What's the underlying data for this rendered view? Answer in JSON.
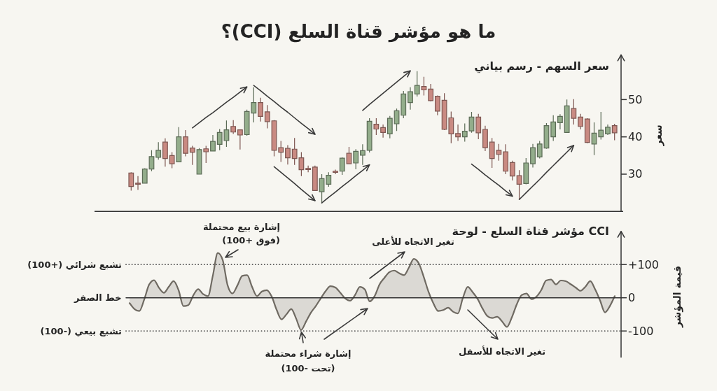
{
  "chart_data": [
    {
      "type": "candlestick",
      "title": "ما هو مؤشر قناة السلع (CCI)؟",
      "subtitle": "سعر السهم - رسم بياني",
      "ylabel": "سعر",
      "tick_labels": "y",
      "ylim": [
        20,
        62
      ],
      "yticks": [
        30,
        40,
        50
      ],
      "categories": [
        null,
        null,
        null,
        null,
        null,
        null,
        null,
        null,
        null,
        null,
        null,
        null,
        null,
        null,
        null,
        null,
        null,
        null,
        null,
        null,
        null,
        null,
        null,
        null,
        null,
        null,
        null,
        null,
        null,
        null,
        null,
        null,
        null,
        null,
        null,
        null,
        null,
        null,
        null,
        null,
        null,
        null,
        null,
        null,
        null,
        null,
        null,
        null,
        null,
        null,
        null,
        null,
        null,
        null,
        null,
        null,
        null,
        null,
        null,
        null,
        null,
        null,
        null,
        null,
        null,
        null,
        null,
        null,
        null,
        null,
        null,
        null
      ],
      "ohlc": [
        [
          30.3,
          30.5,
          25.6,
          26.7
        ],
        [
          27.6,
          29.5,
          25.8,
          27.3
        ],
        [
          27.6,
          31.6,
          27.5,
          31.4
        ],
        [
          31.4,
          36.4,
          30.8,
          34.7
        ],
        [
          34.5,
          38.6,
          33.9,
          36.4
        ],
        [
          38.6,
          39.6,
          32.0,
          34.2
        ],
        [
          35.0,
          35.9,
          31.6,
          32.8
        ],
        [
          33.3,
          42.6,
          33.3,
          40.0
        ],
        [
          40.0,
          41.8,
          34.8,
          35.6
        ],
        [
          37.0,
          37.6,
          32.5,
          35.9
        ],
        [
          30.0,
          37.0,
          30.0,
          36.6
        ],
        [
          36.8,
          37.6,
          33.0,
          36.0
        ],
        [
          36.2,
          40.5,
          36.2,
          38.8
        ],
        [
          38.0,
          42.1,
          36.4,
          41.2
        ],
        [
          39.0,
          44.4,
          37.3,
          41.9
        ],
        [
          42.8,
          44.5,
          40.8,
          41.3
        ],
        [
          41.9,
          41.9,
          36.6,
          40.5
        ],
        [
          40.6,
          47.3,
          40.3,
          46.8
        ],
        [
          46.4,
          53.3,
          43.9,
          49.2
        ],
        [
          49.2,
          50.5,
          44.1,
          45.5
        ],
        [
          46.7,
          48.5,
          42.3,
          44.1
        ],
        [
          44.3,
          44.5,
          34.8,
          36.4
        ],
        [
          37.1,
          38.9,
          33.3,
          35.9
        ],
        [
          36.9,
          37.8,
          32.6,
          34.4
        ],
        [
          36.7,
          39.7,
          32.5,
          34.2
        ],
        [
          34.4,
          35.9,
          29.5,
          31.2
        ],
        [
          31.5,
          32.3,
          30.5,
          31.3
        ],
        [
          31.9,
          32.3,
          25.6,
          25.6
        ],
        [
          25.3,
          30.0,
          22.2,
          28.8
        ],
        [
          27.3,
          30.5,
          26.6,
          29.7
        ],
        [
          30.8,
          31.2,
          30.0,
          30.5
        ],
        [
          30.8,
          34.5,
          29.8,
          34.3
        ],
        [
          35.6,
          37.3,
          32.8,
          32.8
        ],
        [
          33.0,
          36.7,
          31.3,
          36.1
        ],
        [
          35.1,
          38.0,
          32.5,
          36.3
        ],
        [
          36.4,
          45.0,
          35.8,
          44.2
        ],
        [
          43.4,
          45.0,
          40.5,
          42.1
        ],
        [
          42.5,
          43.3,
          39.8,
          41.2
        ],
        [
          40.8,
          45.6,
          39.6,
          45.0
        ],
        [
          43.5,
          47.6,
          41.6,
          47.0
        ],
        [
          45.8,
          52.3,
          45.0,
          51.5
        ],
        [
          49.2,
          53.3,
          47.3,
          52.1
        ],
        [
          51.5,
          57.6,
          50.8,
          53.8
        ],
        [
          53.5,
          56.1,
          51.1,
          52.6
        ],
        [
          52.8,
          54.2,
          49.5,
          49.7
        ],
        [
          50.9,
          51.1,
          45.8,
          46.9
        ],
        [
          49.8,
          51.7,
          41.8,
          42.0
        ],
        [
          45.1,
          46.8,
          38.3,
          40.8
        ],
        [
          40.9,
          43.3,
          38.9,
          40.0
        ],
        [
          40.0,
          43.6,
          38.7,
          41.5
        ],
        [
          41.6,
          46.7,
          41.1,
          45.3
        ],
        [
          45.3,
          46.2,
          39.4,
          41.1
        ],
        [
          42.0,
          43.0,
          36.2,
          37.1
        ],
        [
          38.6,
          39.7,
          31.7,
          34.2
        ],
        [
          36.4,
          38.1,
          33.6,
          35.3
        ],
        [
          36.0,
          38.0,
          30.0,
          30.8
        ],
        [
          33.1,
          33.6,
          28.3,
          29.5
        ],
        [
          29.6,
          31.1,
          23.3,
          27.3
        ],
        [
          27.5,
          34.3,
          27.3,
          33.0
        ],
        [
          32.8,
          38.1,
          31.8,
          37.1
        ],
        [
          34.6,
          38.9,
          34.2,
          38.1
        ],
        [
          37.0,
          43.7,
          36.8,
          43.0
        ],
        [
          40.0,
          45.8,
          38.9,
          44.0
        ],
        [
          43.8,
          46.1,
          42.0,
          45.5
        ],
        [
          41.2,
          50.0,
          41.1,
          48.3
        ],
        [
          47.6,
          50.1,
          43.3,
          45.0
        ],
        [
          45.3,
          46.2,
          42.0,
          42.8
        ],
        [
          44.8,
          45.0,
          38.3,
          38.5
        ],
        [
          38.1,
          43.9,
          35.1,
          41.0
        ],
        [
          40.0,
          46.7,
          39.3,
          41.8
        ],
        [
          40.8,
          43.3,
          40.5,
          42.6
        ],
        [
          43.0,
          43.5,
          39.1,
          41.1
        ]
      ],
      "colors": [
        "#c98a82",
        "#c98a82",
        "#93ad8b",
        "#93ad8b",
        "#93ad8b",
        "#c98a82",
        "#c98a82",
        "#93ad8b",
        "#c98a82",
        "#c98a82",
        "#93ad8b",
        "#c98a82",
        "#93ad8b",
        "#93ad8b",
        "#93ad8b",
        "#c98a82",
        "#c98a82",
        "#93ad8b",
        "#93ad8b",
        "#c98a82",
        "#c98a82",
        "#c98a82",
        "#c98a82",
        "#c98a82",
        "#c98a82",
        "#c98a82",
        "#c98a82",
        "#c98a82",
        "#93ad8b",
        "#93ad8b",
        "#c98a82",
        "#93ad8b",
        "#c98a82",
        "#93ad8b",
        "#93ad8b",
        "#93ad8b",
        "#c98a82",
        "#c98a82",
        "#93ad8b",
        "#93ad8b",
        "#93ad8b",
        "#93ad8b",
        "#93ad8b",
        "#c98a82",
        "#c98a82",
        "#c98a82",
        "#c98a82",
        "#c98a82",
        "#c98a82",
        "#93ad8b",
        "#93ad8b",
        "#c98a82",
        "#c98a82",
        "#c98a82",
        "#c98a82",
        "#c98a82",
        "#c98a82",
        "#c98a82",
        "#93ad8b",
        "#93ad8b",
        "#93ad8b",
        "#93ad8b",
        "#93ad8b",
        "#93ad8b",
        "#93ad8b",
        "#c98a82",
        "#c98a82",
        "#c98a82",
        "#93ad8b",
        "#93ad8b",
        "#93ad8b",
        "#c98a82"
      ],
      "series": [
        {
          "type": "line",
          "color": "#3a3a3a",
          "values": [
            null,
            null,
            null,
            null,
            null,
            null,
            null,
            null,
            null,
            42.4,
            43.8,
            45.2,
            46.5,
            47.9,
            49.3,
            50.6,
            52.0,
            53.4,
            null,
            null,
            null,
            null,
            null,
            null,
            null,
            null,
            null,
            null,
            null,
            null,
            null,
            null,
            null,
            null,
            null,
            null,
            null,
            null,
            null,
            null,
            null,
            null,
            null,
            null,
            null,
            null,
            null,
            null,
            null,
            null,
            null,
            null,
            null,
            null,
            null,
            null,
            null,
            null,
            null,
            null,
            null,
            null,
            null,
            null,
            null,
            null,
            null,
            null,
            null,
            null,
            null,
            null
          ]
        },
        {
          "type": "line",
          "color": "#3a3a3a",
          "values": [
            null,
            null,
            null,
            null,
            null,
            null,
            null,
            null,
            null,
            null,
            null,
            null,
            null,
            null,
            null,
            null,
            null,
            null,
            53.8,
            52.4,
            50.9,
            49.5,
            48.0,
            46.6,
            45.1,
            43.6,
            42.2,
            40.7,
            null,
            null,
            null,
            null,
            null,
            null,
            null,
            null,
            null,
            null,
            null,
            null,
            null,
            null,
            null,
            null,
            null,
            null,
            null,
            null,
            null,
            null,
            null,
            null,
            null,
            null,
            null,
            null,
            null,
            null,
            null,
            null,
            null,
            null,
            null,
            null,
            null,
            null,
            null,
            null,
            null,
            null,
            null,
            null
          ]
        },
        {
          "type": "line",
          "color": "#3a3a3a",
          "values": [
            null,
            null,
            null,
            null,
            null,
            null,
            null,
            null,
            null,
            null,
            null,
            null,
            null,
            null,
            null,
            null,
            null,
            null,
            null,
            null,
            null,
            32.0,
            30.5,
            29.0,
            27.5,
            25.9,
            24.4,
            22.9,
            null,
            null,
            null,
            null,
            null,
            null,
            null,
            null,
            null,
            null,
            null,
            null,
            null,
            null,
            null,
            null,
            null,
            null,
            null,
            null,
            null,
            null,
            null,
            null,
            null,
            null,
            null,
            null,
            null,
            null,
            null,
            null,
            null,
            null,
            null,
            null,
            null,
            null,
            null,
            null,
            null,
            null,
            null,
            null
          ]
        },
        {
          "type": "line",
          "color": "#3a3a3a",
          "values": [
            null,
            null,
            null,
            null,
            null,
            null,
            null,
            null,
            null,
            null,
            null,
            null,
            null,
            null,
            null,
            null,
            null,
            null,
            null,
            null,
            null,
            null,
            null,
            null,
            null,
            null,
            null,
            null,
            22.3,
            23.8,
            25.2,
            26.7,
            28.1,
            29.6,
            31.0,
            32.5,
            null,
            null,
            null,
            null,
            null,
            null,
            null,
            null,
            null,
            null,
            null,
            null,
            null,
            null,
            null,
            null,
            null,
            null,
            null,
            null,
            null,
            null,
            null,
            null,
            null,
            null,
            null,
            null,
            null,
            null,
            null,
            null,
            null,
            null,
            null,
            null
          ]
        },
        {
          "type": "line",
          "color": "#3a3a3a",
          "values": [
            null,
            null,
            null,
            null,
            null,
            null,
            null,
            null,
            null,
            null,
            null,
            null,
            null,
            null,
            null,
            null,
            null,
            null,
            null,
            null,
            null,
            null,
            null,
            null,
            null,
            null,
            null,
            null,
            null,
            null,
            null,
            null,
            null,
            null,
            47.1,
            48.7,
            50.2,
            51.7,
            53.2,
            54.7,
            56.2,
            57.7,
            null,
            null,
            null,
            null,
            null,
            null,
            null,
            null,
            null,
            null,
            null,
            null,
            null,
            null,
            null,
            null,
            null,
            null,
            null,
            null,
            null,
            null,
            null,
            null,
            null,
            null,
            null,
            null,
            null,
            null
          ]
        },
        {
          "type": "line",
          "color": "#3a3a3a",
          "values": [
            null,
            null,
            null,
            null,
            null,
            null,
            null,
            null,
            null,
            null,
            null,
            null,
            null,
            null,
            null,
            null,
            null,
            null,
            null,
            null,
            null,
            null,
            null,
            null,
            null,
            null,
            null,
            null,
            null,
            null,
            null,
            null,
            null,
            null,
            null,
            null,
            null,
            null,
            null,
            null,
            null,
            null,
            null,
            null,
            null,
            null,
            null,
            null,
            null,
            null,
            32.7,
            31.3,
            29.8,
            28.4,
            27.0,
            25.5,
            24.1,
            null,
            null,
            null,
            null,
            null,
            null,
            null,
            null,
            null,
            null,
            null,
            null,
            null,
            null,
            null
          ]
        },
        {
          "type": "line",
          "color": "#3a3a3a",
          "values": [
            null,
            null,
            null,
            null,
            null,
            null,
            null,
            null,
            null,
            null,
            null,
            null,
            null,
            null,
            null,
            null,
            null,
            null,
            null,
            null,
            null,
            null,
            null,
            null,
            null,
            null,
            null,
            null,
            null,
            null,
            null,
            null,
            null,
            null,
            null,
            null,
            null,
            null,
            null,
            null,
            null,
            null,
            null,
            null,
            null,
            null,
            null,
            null,
            null,
            null,
            null,
            null,
            null,
            null,
            null,
            null,
            null,
            23.2,
            25.0,
            26.8,
            28.6,
            30.5,
            32.3,
            34.1,
            35.9,
            37.7,
            null,
            null,
            null,
            null,
            null,
            null
          ]
        }
      ]
    },
    {
      "type": "area",
      "title": "CCI مؤشر قناة السلع - لوحة",
      "ylabel": "قيمة المؤشر",
      "tick_labels": "y",
      "ylim": [
        -180,
        200
      ],
      "yticks": [
        -100,
        0,
        {
          "value": 100,
          "label": "+100"
        }
      ],
      "color": "#6f6a62",
      "categories": [
        null,
        null,
        null,
        null,
        null,
        null,
        null,
        null,
        null,
        null,
        null,
        null,
        null,
        null,
        null,
        null,
        null,
        null,
        null,
        null,
        null,
        null,
        null,
        null,
        null,
        null,
        null,
        null,
        null,
        null,
        null,
        null,
        null,
        null,
        null,
        null,
        null,
        null,
        null,
        null,
        null,
        null,
        null,
        null,
        null,
        null,
        null,
        null,
        null,
        null,
        null,
        null,
        null,
        null,
        null,
        null,
        null,
        null,
        null,
        null,
        null,
        null,
        null,
        null,
        null,
        null,
        null,
        null,
        null,
        null,
        null,
        null,
        null,
        null,
        null,
        null,
        null,
        null,
        null,
        null,
        null,
        null,
        null,
        null,
        null,
        null,
        null,
        null,
        null,
        null,
        null,
        null,
        null,
        null,
        null,
        null,
        null,
        null,
        null,
        null
      ],
      "values": [
        -16,
        -34,
        -40,
        -5,
        40,
        53,
        30,
        15,
        33,
        50,
        23,
        -25,
        -22,
        7,
        26,
        11,
        5,
        67,
        135,
        114,
        38,
        13,
        37,
        66,
        68,
        33,
        5,
        19,
        23,
        4,
        -36,
        -65,
        -50,
        -34,
        -63,
        -97,
        -72,
        -45,
        -25,
        -2,
        20,
        35,
        31,
        15,
        -2,
        -9,
        8,
        33,
        25,
        -11,
        5,
        40,
        60,
        77,
        82,
        74,
        68,
        91,
        117,
        104,
        64,
        18,
        -17,
        -40,
        -37,
        -30,
        -42,
        -47,
        -1,
        33,
        17,
        -3,
        -32,
        -55,
        -61,
        -57,
        -71,
        -88,
        -59,
        -20,
        8,
        13,
        -4,
        3,
        23,
        52,
        55,
        40,
        52,
        50,
        41,
        31,
        21,
        33,
        50,
        25,
        -8,
        -44,
        -25,
        5
      ],
      "ref_lines": [
        {
          "axis": "y",
          "value": 100,
          "label": "تشبع شرائي (+100)",
          "line_style": "dotted",
          "color": "#555555"
        },
        {
          "axis": "y",
          "value": 0,
          "label": "خط الصفر",
          "line_style": "solid",
          "color": "#333333"
        },
        {
          "axis": "y",
          "value": -100,
          "label": "تشبع بيعي (-100)",
          "line_style": "dotted",
          "color": "#555555"
        }
      ],
      "annotations": [
        "إشارة بيع محتملة (فوق +100)",
        {
          "text": "إشارة شراء محتملة (تحت -100)",
          "y": -97
        },
        "تغير الاتجاه للأعلى",
        "تغير الاتجاه للأسفل"
      ]
    }
  ]
}
